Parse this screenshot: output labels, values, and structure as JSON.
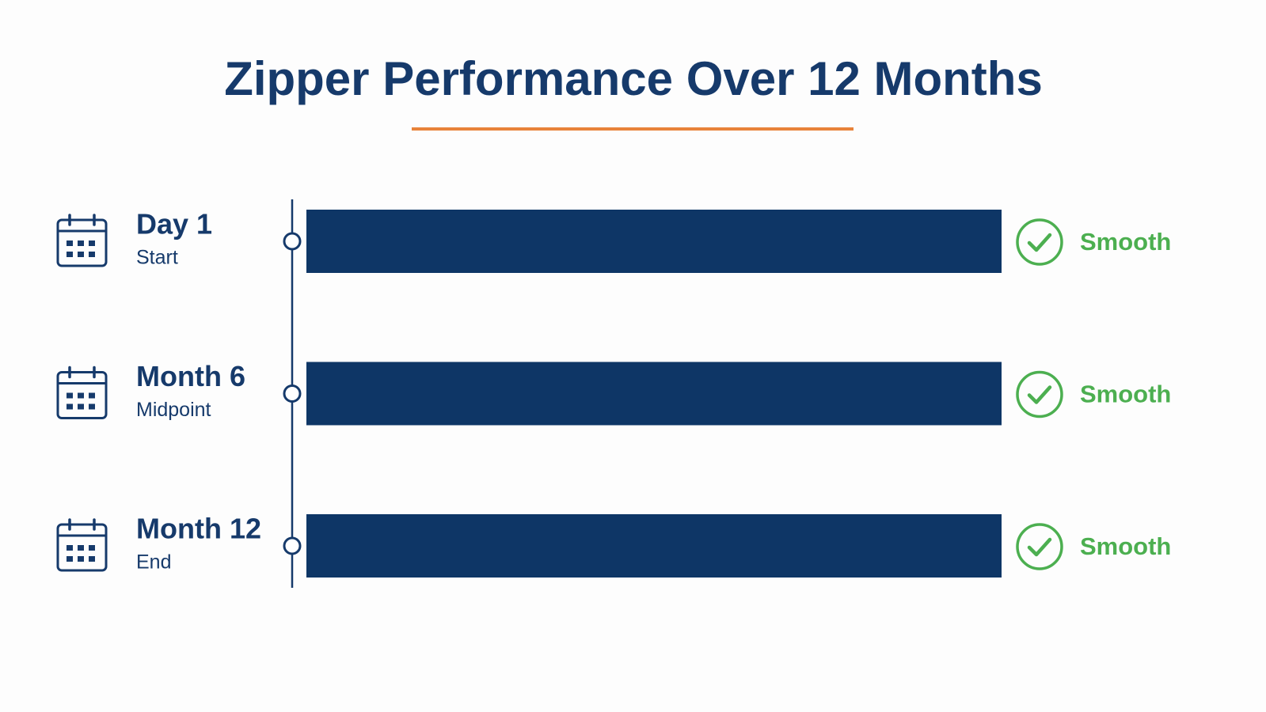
{
  "title": "Zipper Performance Over 12 Months",
  "rows": [
    {
      "label": "Day 1",
      "sublabel": "Start",
      "status": "Smooth"
    },
    {
      "label": "Month 6",
      "sublabel": "Midpoint",
      "status": "Smooth"
    },
    {
      "label": "Month 12",
      "sublabel": "End",
      "status": "Smooth"
    }
  ]
}
